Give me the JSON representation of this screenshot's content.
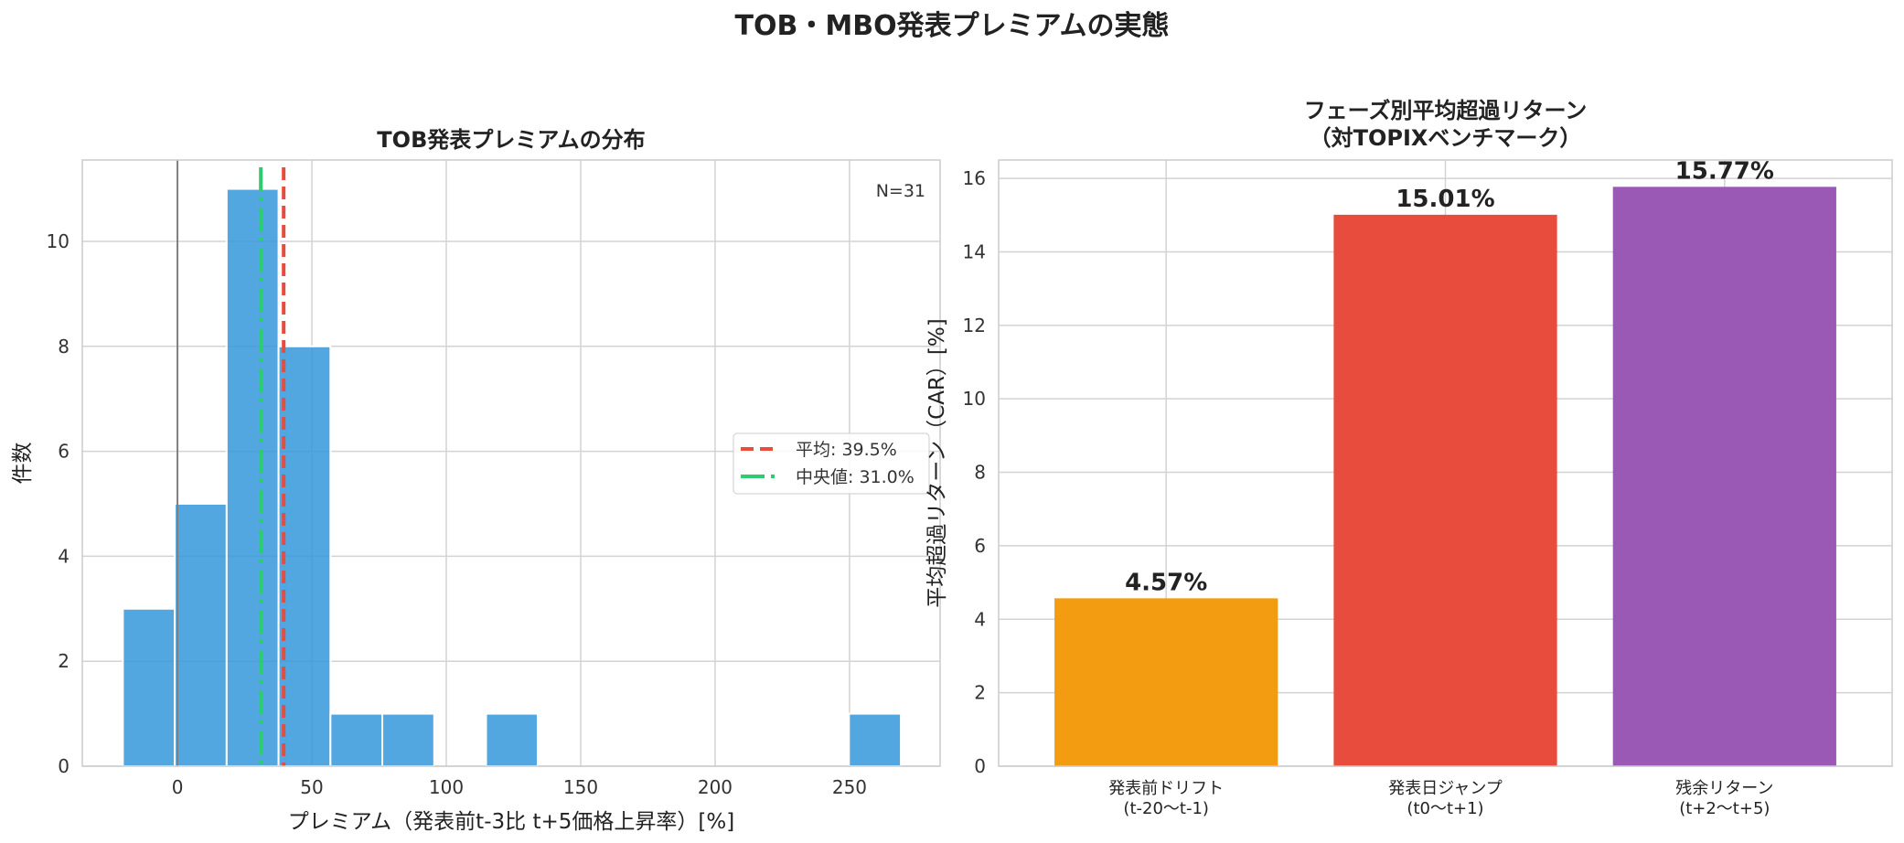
{
  "suptitle": "TOB・MBO発表プレミアムの実態",
  "chart_data": [
    {
      "type": "bar",
      "subtype": "histogram",
      "title": "TOB発表プレミアムの分布",
      "xlabel": "プレミアム（発表前t-3比 t+5価格上昇率）[%]",
      "ylabel": "件数",
      "bin_edges": [
        -20.3,
        -1.0,
        18.3,
        37.6,
        56.9,
        76.2,
        95.5,
        114.8,
        134.0,
        153.3,
        172.6,
        191.9,
        211.2,
        230.5,
        249.8,
        269.1
      ],
      "counts": [
        3,
        5,
        11,
        8,
        1,
        1,
        0,
        1,
        0,
        0,
        0,
        0,
        0,
        0,
        1
      ],
      "xlim": [
        -35.4,
        283.7
      ],
      "ylim": [
        0,
        11.55
      ],
      "xticks": [
        0,
        50,
        100,
        150,
        200,
        250
      ],
      "yticks": [
        0,
        2,
        4,
        6,
        8,
        10
      ],
      "annotation": "N=31",
      "reference_lines": [
        {
          "name": "平均: 39.5%",
          "x": 39.5,
          "color": "#e74c3c",
          "style": "dashed"
        },
        {
          "name": "中央値: 31.0%",
          "x": 31.0,
          "color": "#2ecc71",
          "style": "dashdot"
        },
        {
          "x": 0,
          "color": "#808080",
          "style": "solid"
        }
      ],
      "bar_color": "#3498db",
      "legend_position": "center-right",
      "grid": true
    },
    {
      "type": "bar",
      "title": "フェーズ別平均超過リターン\n（対TOPIXベンチマーク）",
      "title_lines": [
        "フェーズ別平均超過リターン",
        "（対TOPIXベンチマーク）"
      ],
      "ylabel": "平均超過リターン（CAR）[%]",
      "categories": [
        [
          "発表前ドリフト",
          "(t-20〜t-1)"
        ],
        [
          "発表日ジャンプ",
          "(t0〜t+1)"
        ],
        [
          "残余リターン",
          "(t+2〜t+5)"
        ]
      ],
      "values": [
        4.57,
        15.01,
        15.77
      ],
      "data_labels": [
        "4.57%",
        "15.01%",
        "15.77%"
      ],
      "colors": [
        "#f39c12",
        "#e74c3c",
        "#9b59b6"
      ],
      "ylim": [
        0,
        16.5
      ],
      "yticks": [
        0,
        2,
        4,
        6,
        8,
        10,
        12,
        14,
        16
      ],
      "grid": true
    }
  ]
}
